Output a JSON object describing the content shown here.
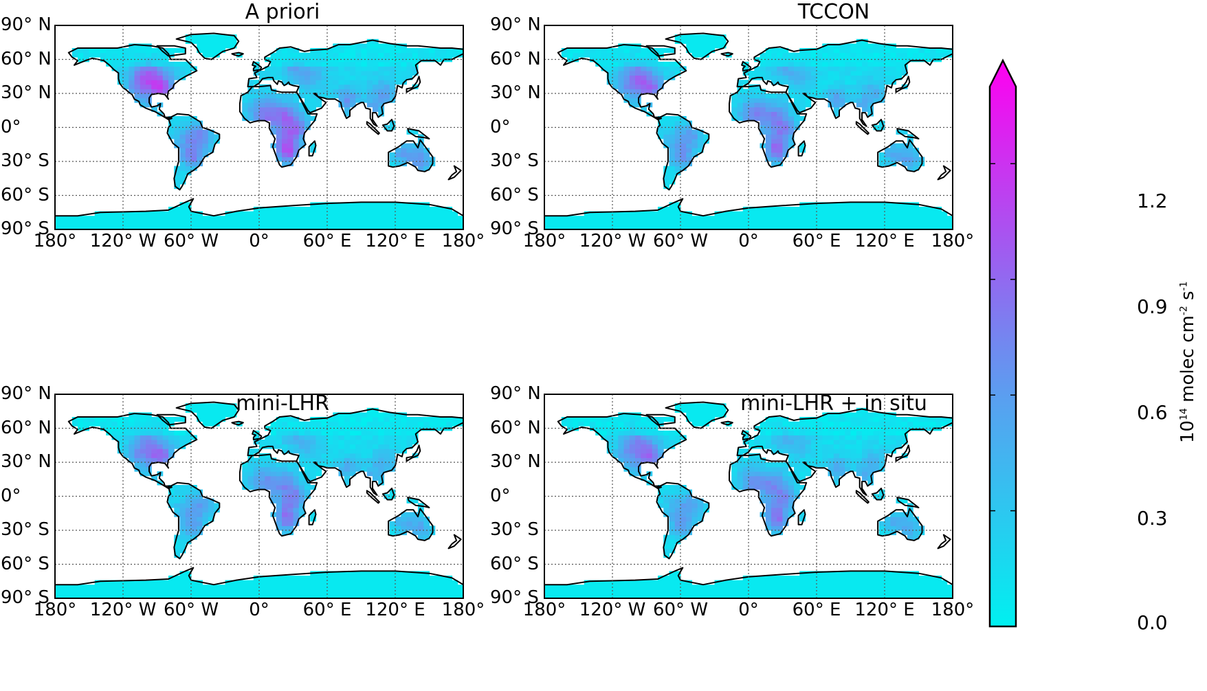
{
  "maps": [
    {
      "title": "A priori",
      "lat_labels": [
        "90° N",
        "60° N",
        "30° N",
        "0°",
        "30° S",
        "60° S",
        "90° S"
      ],
      "lon_labels": [
        "180°",
        "120° W",
        "60° W",
        "0°",
        "60° E",
        "120° E",
        "180°"
      ],
      "intensity": 1.0
    },
    {
      "title": "TCCON",
      "lat_labels": [
        "90° N",
        "60° N",
        "30° N",
        "0°",
        "30° S",
        "60° S",
        "90° S"
      ],
      "lon_labels": [
        "180°",
        "120° W",
        "60° W",
        "0°",
        "60° E",
        "120° E",
        "180°"
      ],
      "intensity": 0.85
    },
    {
      "title": "mini-LHR",
      "lat_labels": [
        "90° N",
        "60° N",
        "30° N",
        "0°",
        "30° S",
        "60° S",
        "90° S"
      ],
      "lon_labels": [
        "180°",
        "120° W",
        "60° W",
        "0°",
        "60° E",
        "120° E",
        "180°"
      ],
      "intensity": 0.8
    },
    {
      "title": "mini-LHR + in situ",
      "lat_labels": [
        "90° N",
        "60° N",
        "30° N",
        "0°",
        "30° S",
        "60° S",
        "90° S"
      ],
      "lon_labels": [
        "180°",
        "120° W",
        "60° W",
        "0°",
        "60° E",
        "120° E",
        "180°"
      ],
      "intensity": 0.8
    }
  ],
  "colorbar": {
    "ticks": [
      "0.0",
      "0.3",
      "0.6",
      "0.9",
      "1.2"
    ],
    "tick_values": [
      0.0,
      0.3,
      0.6,
      0.9,
      1.2
    ],
    "range": [
      0.0,
      1.4
    ],
    "extend": "max",
    "label_base": "10",
    "label_exp1": "14",
    "label_mid": " molec cm",
    "label_exp2": "-2",
    "label_s": " s",
    "label_exp3": "-1",
    "color_low": "#00f0f0",
    "color_high": "#ff00f0"
  },
  "colors": {
    "ocean": "#ffffff",
    "coast": "#000000",
    "grid": "#555555"
  }
}
